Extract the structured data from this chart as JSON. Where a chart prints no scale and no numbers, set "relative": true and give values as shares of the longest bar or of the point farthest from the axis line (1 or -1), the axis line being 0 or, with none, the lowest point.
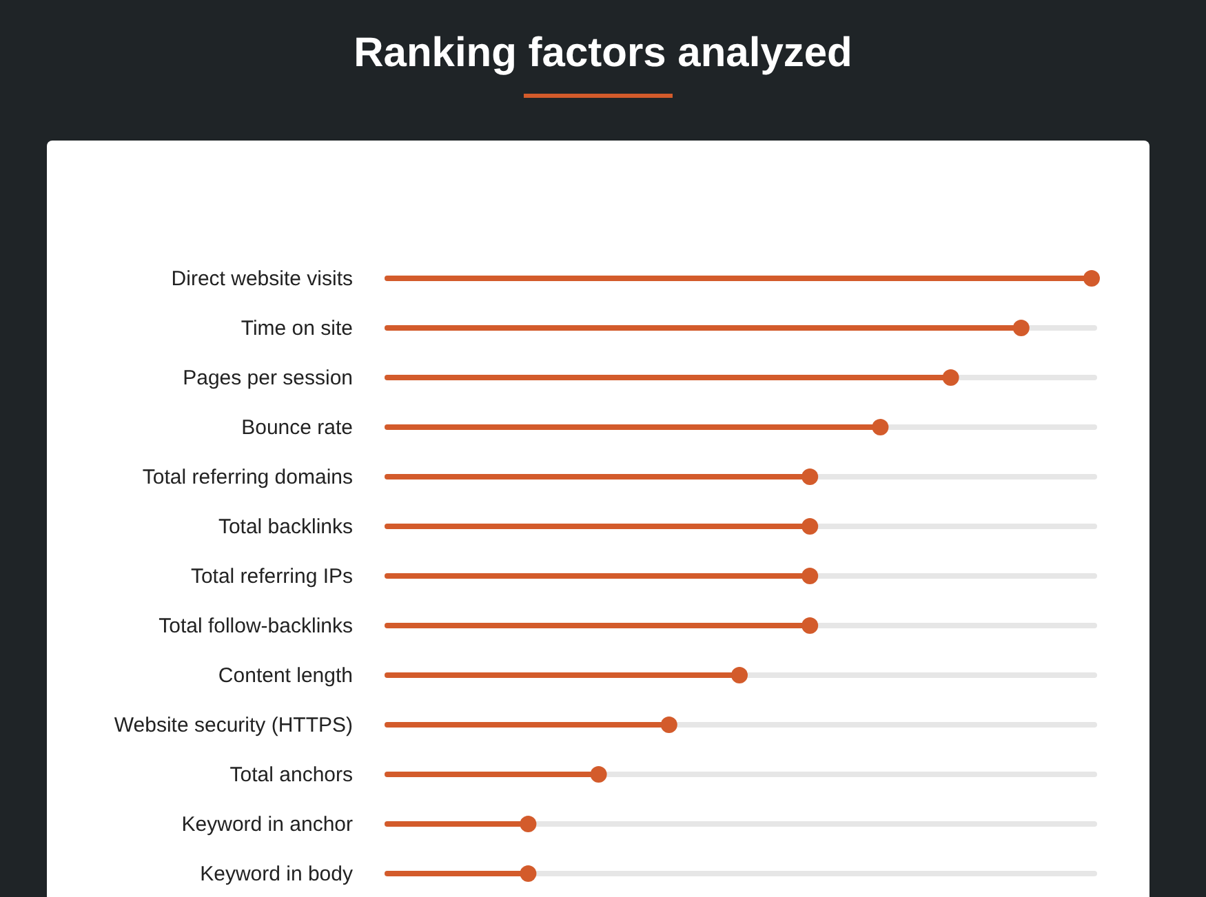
{
  "chart_data": {
    "type": "lollipop",
    "orientation": "horizontal",
    "relative": true,
    "title": "Ranking factors analyzed",
    "categories": [
      "Direct website visits",
      "Time on site",
      "Pages per session",
      "Bounce rate",
      "Total referring domains",
      "Total backlinks",
      "Total referring IPs",
      "Total follow-backlinks",
      "Content length",
      "Website security (HTTPS)",
      "Total anchors",
      "Keyword in anchor",
      "Keyword in body"
    ],
    "values": [
      1,
      0.9,
      0.8,
      0.7,
      0.6,
      0.6,
      0.6,
      0.6,
      0.5,
      0.4,
      0.3,
      0.2,
      0.2
    ],
    "color": "#d35b2b",
    "marker": "circle",
    "grid": "y"
  }
}
